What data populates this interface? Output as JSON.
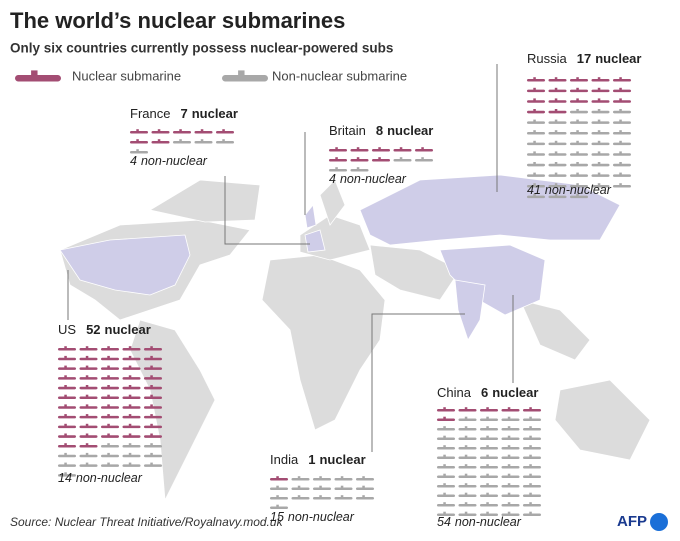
{
  "header": {
    "title": "The world’s nuclear submarines",
    "subtitle": "Only six countries currently possess nuclear-powered subs"
  },
  "legend": {
    "nuclear": "Nuclear submarine",
    "non_nuclear": "Non-nuclear submarine"
  },
  "colors": {
    "nuclear": "#a34d73",
    "non_nuclear": "#a8a8a8"
  },
  "countries": [
    {
      "name": "Russia",
      "nuclear": 17,
      "nuclear_label": "nuclear",
      "non_nuclear": 41,
      "non_nuclear_label": "non-nuclear"
    },
    {
      "name": "France",
      "nuclear": 7,
      "nuclear_label": "nuclear",
      "non_nuclear": 4,
      "non_nuclear_label": "non-nuclear"
    },
    {
      "name": "Britain",
      "nuclear": 8,
      "nuclear_label": "nuclear",
      "non_nuclear": 4,
      "non_nuclear_label": "non-nuclear"
    },
    {
      "name": "US",
      "nuclear": 52,
      "nuclear_label": "nuclear",
      "non_nuclear": 14,
      "non_nuclear_label": "non-nuclear"
    },
    {
      "name": "China",
      "nuclear": 6,
      "nuclear_label": "nuclear",
      "non_nuclear": 54,
      "non_nuclear_label": "non-nuclear"
    },
    {
      "name": "India",
      "nuclear": 1,
      "nuclear_label": "nuclear",
      "non_nuclear": 15,
      "non_nuclear_label": "non-nuclear"
    }
  ],
  "footer": {
    "source": "Source: Nuclear Threat Initiative/Royalnavy.mod.uk",
    "logo": "AFP"
  }
}
